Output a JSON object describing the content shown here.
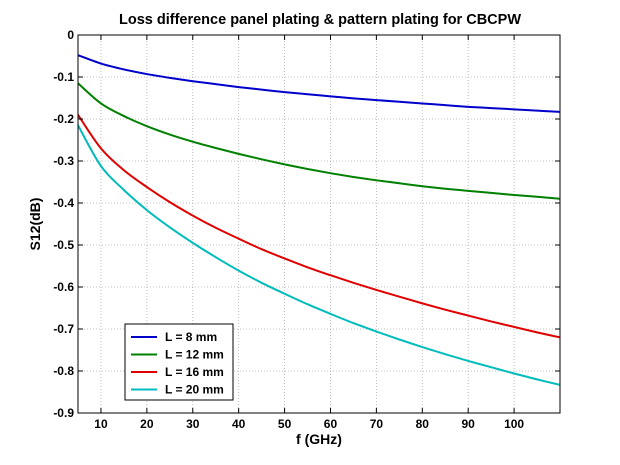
{
  "chart_data": {
    "type": "line",
    "title": "Loss difference panel plating & pattern plating for CBCPW",
    "xlabel": "f (GHz)",
    "ylabel": "S12(dB)",
    "xlim": [
      5,
      110
    ],
    "ylim": [
      -0.9,
      0
    ],
    "xticks": [
      10,
      20,
      30,
      40,
      50,
      60,
      70,
      80,
      90,
      100
    ],
    "yticks": [
      0,
      -0.1,
      -0.2,
      -0.3,
      -0.4,
      -0.5,
      -0.6,
      -0.7,
      -0.8,
      -0.9
    ],
    "xtick_labels": [
      "10",
      "20",
      "30",
      "40",
      "50",
      "60",
      "70",
      "80",
      "90",
      "100"
    ],
    "ytick_labels": [
      "0",
      "-0.1",
      "-0.2",
      "-0.3",
      "-0.4",
      "-0.5",
      "-0.6",
      "-0.7",
      "-0.8",
      "-0.9"
    ],
    "grid": true,
    "legend_position": "bottom-left",
    "x": [
      5,
      10,
      15,
      20,
      25,
      30,
      35,
      40,
      45,
      50,
      55,
      60,
      65,
      70,
      75,
      80,
      85,
      90,
      95,
      100,
      105,
      110
    ],
    "series": [
      {
        "name": "L = 8 mm",
        "color": "#0000cc",
        "values": [
          -0.048,
          -0.068,
          -0.082,
          -0.093,
          -0.102,
          -0.11,
          -0.117,
          -0.124,
          -0.13,
          -0.136,
          -0.141,
          -0.146,
          -0.151,
          -0.155,
          -0.159,
          -0.163,
          -0.167,
          -0.171,
          -0.174,
          -0.177,
          -0.18,
          -0.183
        ]
      },
      {
        "name": "L = 12 mm",
        "color": "#008000",
        "values": [
          -0.115,
          -0.163,
          -0.193,
          -0.217,
          -0.237,
          -0.254,
          -0.269,
          -0.283,
          -0.296,
          -0.308,
          -0.319,
          -0.329,
          -0.338,
          -0.346,
          -0.353,
          -0.36,
          -0.366,
          -0.371,
          -0.376,
          -0.381,
          -0.385,
          -0.39
        ]
      },
      {
        "name": "L = 16 mm",
        "color": "#e00000",
        "values": [
          -0.19,
          -0.27,
          -0.322,
          -0.362,
          -0.398,
          -0.43,
          -0.459,
          -0.485,
          -0.51,
          -0.532,
          -0.553,
          -0.572,
          -0.59,
          -0.607,
          -0.623,
          -0.639,
          -0.654,
          -0.668,
          -0.682,
          -0.695,
          -0.708,
          -0.72
        ]
      },
      {
        "name": "L = 20 mm",
        "color": "#00bcbc",
        "values": [
          -0.215,
          -0.312,
          -0.369,
          -0.417,
          -0.458,
          -0.495,
          -0.529,
          -0.561,
          -0.59,
          -0.616,
          -0.641,
          -0.664,
          -0.686,
          -0.706,
          -0.725,
          -0.743,
          -0.76,
          -0.776,
          -0.791,
          -0.806,
          -0.82,
          -0.833
        ]
      }
    ]
  }
}
